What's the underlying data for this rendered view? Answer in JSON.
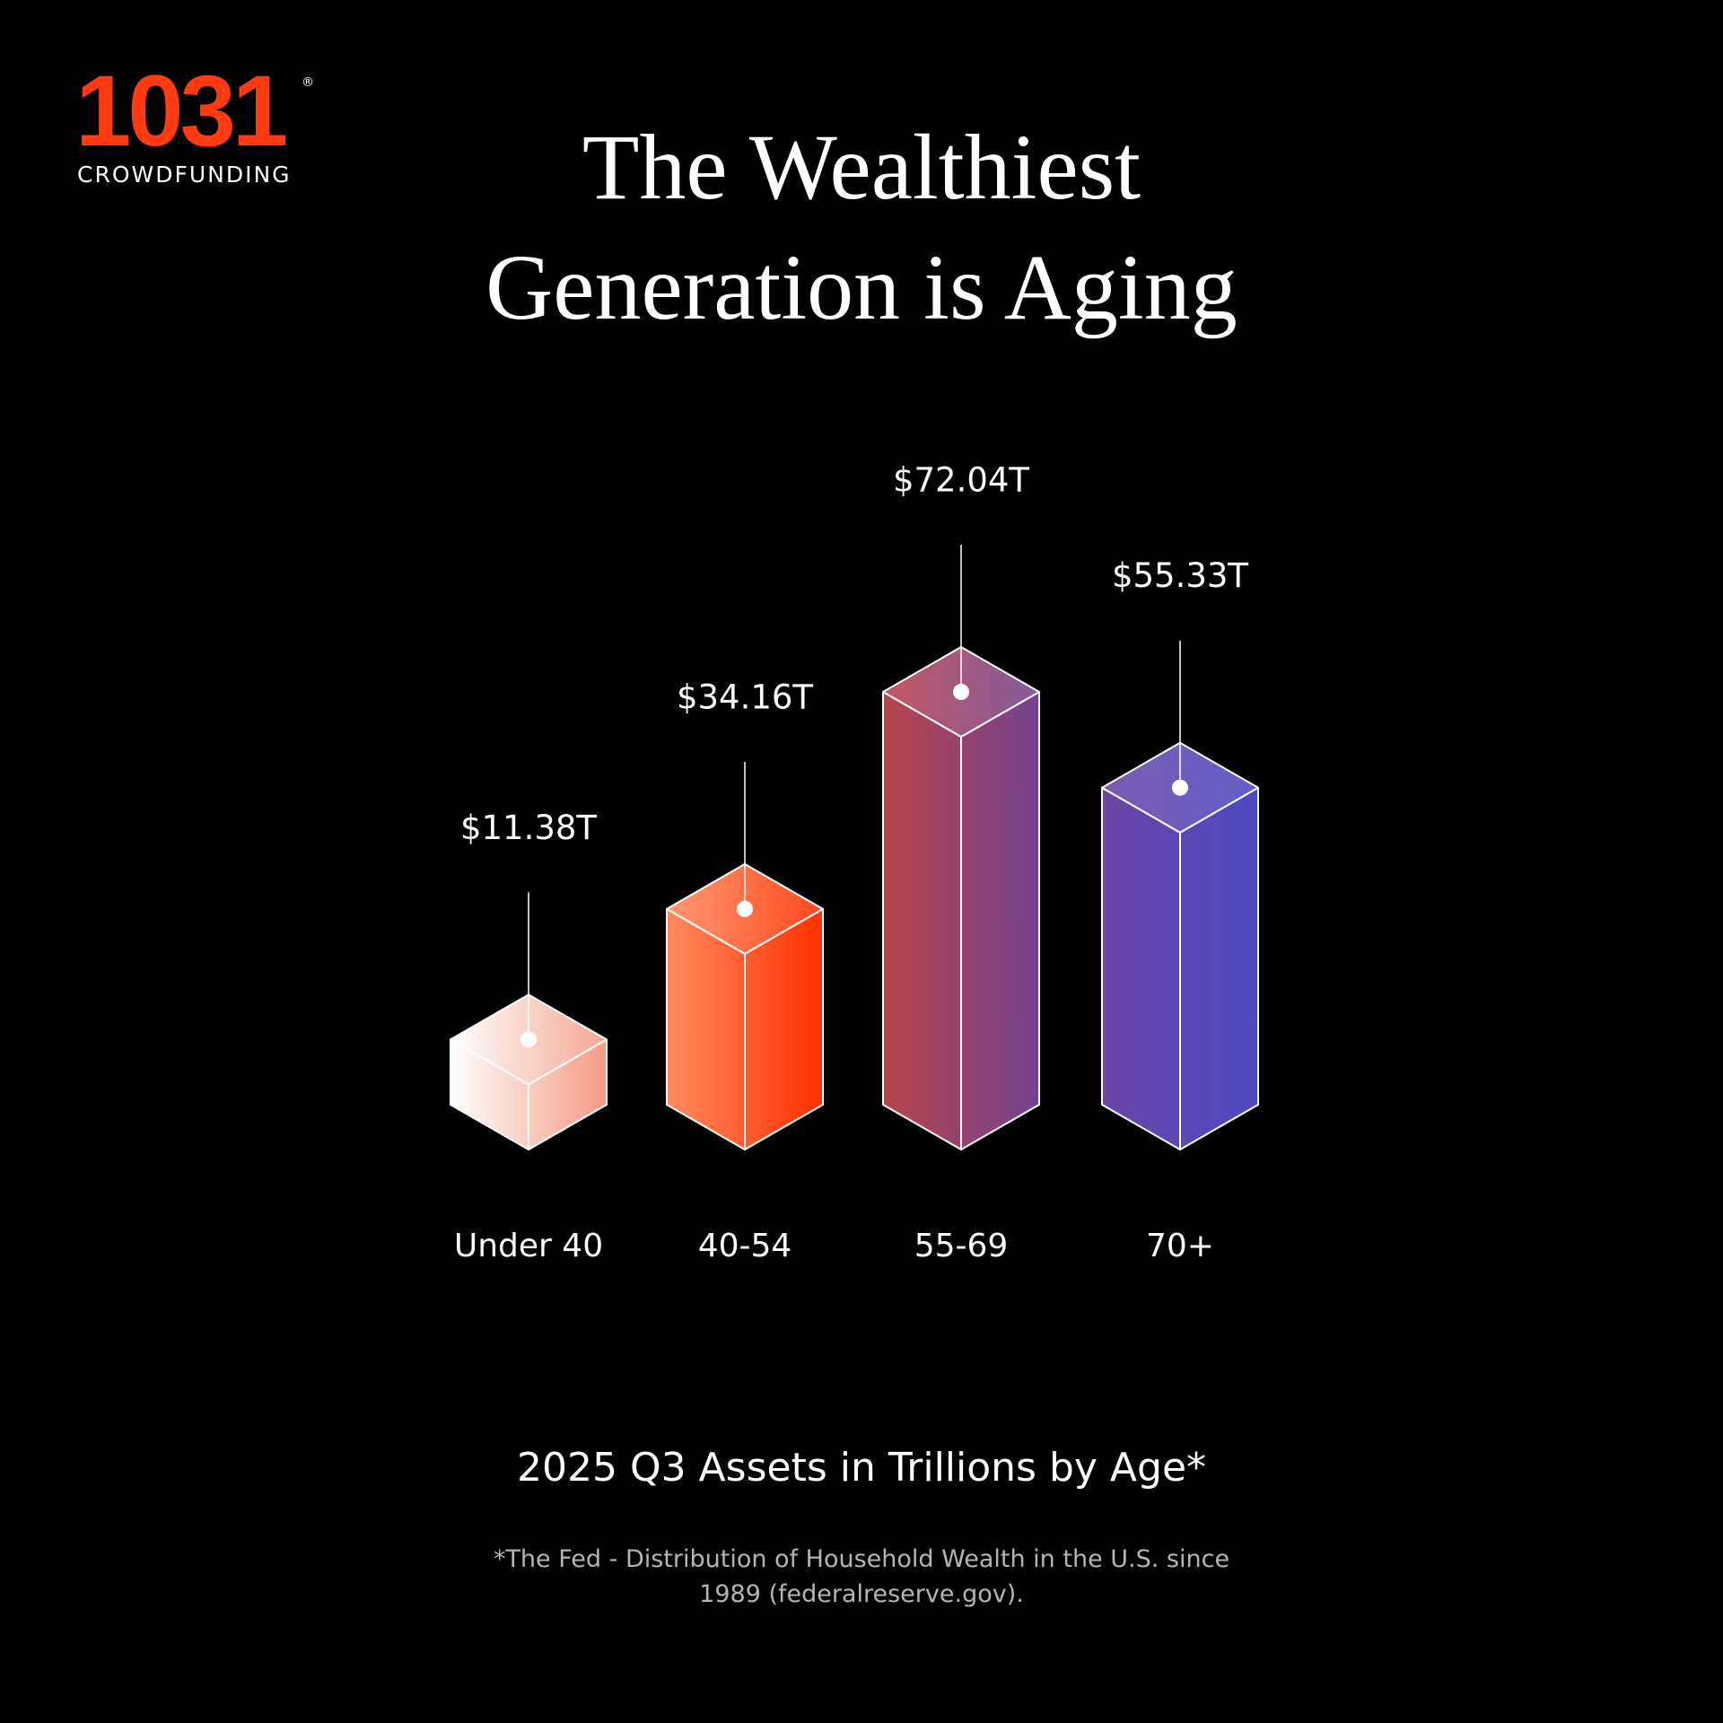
{
  "logo": {
    "name": "1031",
    "mark": "®",
    "tagline": "CROWDFUNDING"
  },
  "chart_data": {
    "type": "bar",
    "title": "The Wealthiest Generation is Aging",
    "subtitle": "2025 Q3 Assets in Trillions by Age*",
    "footnote": "*The Fed - Distribution of Household Wealth in the U.S. since 1989 (federalreserve.gov).",
    "categories": [
      "Under 40",
      "40-54",
      "55-69",
      "70+"
    ],
    "values": [
      11.38,
      34.16,
      72.04,
      55.33
    ],
    "value_labels": [
      "$11.38T",
      "$34.16T",
      "$72.04T",
      "$55.33T"
    ],
    "colors": [
      [
        "#ffffff",
        "#f49a84"
      ],
      [
        "#ff8a60",
        "#ff3000"
      ],
      [
        "#b8434c",
        "#74438f"
      ],
      [
        "#6a46a6",
        "#4c48c2"
      ]
    ]
  }
}
